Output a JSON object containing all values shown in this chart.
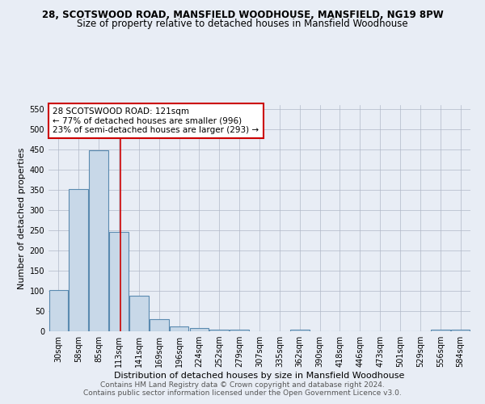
{
  "title1": "28, SCOTSWOOD ROAD, MANSFIELD WOODHOUSE, MANSFIELD, NG19 8PW",
  "title2": "Size of property relative to detached houses in Mansfield Woodhouse",
  "xlabel": "Distribution of detached houses by size in Mansfield Woodhouse",
  "ylabel": "Number of detached properties",
  "footnote1": "Contains HM Land Registry data © Crown copyright and database right 2024.",
  "footnote2": "Contains public sector information licensed under the Open Government Licence v3.0.",
  "categories": [
    "30sqm",
    "58sqm",
    "85sqm",
    "113sqm",
    "141sqm",
    "169sqm",
    "196sqm",
    "224sqm",
    "252sqm",
    "279sqm",
    "307sqm",
    "335sqm",
    "362sqm",
    "390sqm",
    "418sqm",
    "446sqm",
    "473sqm",
    "501sqm",
    "529sqm",
    "556sqm",
    "584sqm"
  ],
  "values": [
    103,
    353,
    448,
    246,
    88,
    30,
    13,
    9,
    5,
    5,
    0,
    0,
    5,
    0,
    0,
    0,
    0,
    0,
    0,
    5,
    5
  ],
  "bar_color": "#c8d8e8",
  "bar_edge_color": "#5a8ab0",
  "bar_linewidth": 0.8,
  "grid_color": "#b0b8c8",
  "background_color": "#e8edf5",
  "annotation_text": "28 SCOTSWOOD ROAD: 121sqm\n← 77% of detached houses are smaller (996)\n23% of semi-detached houses are larger (293) →",
  "annotation_box_color": "#ffffff",
  "annotation_border_color": "#cc0000",
  "vline_color": "#cc0000",
  "vline_x_index": 3.09,
  "ylim": [
    0,
    560
  ],
  "yticks": [
    0,
    50,
    100,
    150,
    200,
    250,
    300,
    350,
    400,
    450,
    500,
    550
  ],
  "title1_fontsize": 8.5,
  "title2_fontsize": 8.5,
  "xlabel_fontsize": 8,
  "ylabel_fontsize": 8,
  "tick_fontsize": 7,
  "annot_fontsize": 7.5,
  "footnote_fontsize": 6.5
}
